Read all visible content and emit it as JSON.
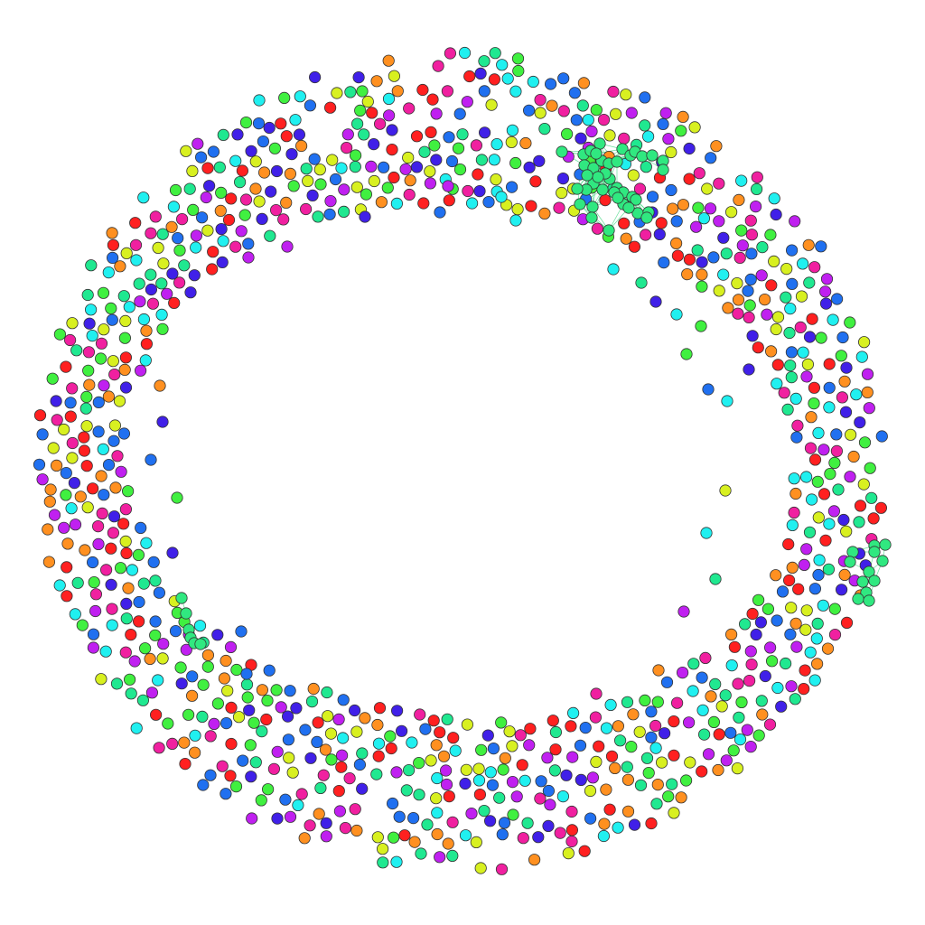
{
  "diagram": {
    "type": "network-graph",
    "layout": "ring",
    "background": "#ffffff",
    "node_count": 1032,
    "palette": [
      "#ff2020",
      "#ff9020",
      "#d8f020",
      "#40f040",
      "#20e890",
      "#20f0f0",
      "#2070f0",
      "#4020e8",
      "#c020f0",
      "#f020a0"
    ],
    "cluster_color": "#30e880",
    "clusters": [
      {
        "id": "top-right-cluster",
        "node_count": 40,
        "edges": true
      },
      {
        "id": "right-cluster",
        "node_count": 12,
        "edges": true
      },
      {
        "id": "left-inner-chain",
        "node_count": 6,
        "edges": true
      }
    ]
  }
}
